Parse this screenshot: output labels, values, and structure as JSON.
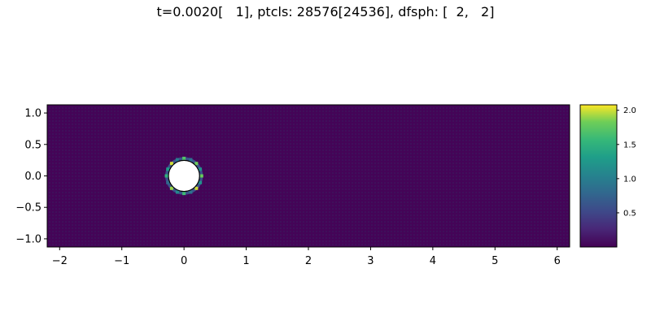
{
  "title": "t=0.0020[   1], ptcls: 28576[24536], dfsph: [  2,   2]",
  "chart_data": {
    "type": "heatmap",
    "title": "t=0.0020[   1], ptcls: 28576[24536], dfsph: [  2,   2]",
    "xlabel": "",
    "ylabel": "",
    "xlim": [
      -2.2,
      6.2
    ],
    "ylim": [
      -1.13,
      1.13
    ],
    "x_ticks": [
      -2,
      -1,
      0,
      1,
      2,
      3,
      4,
      5,
      6
    ],
    "x_tick_labels": [
      "−2",
      "−1",
      "0",
      "1",
      "2",
      "3",
      "4",
      "5",
      "6"
    ],
    "y_ticks": [
      1.0,
      0.5,
      0.0,
      -0.5,
      -1.0
    ],
    "y_tick_labels": [
      "1.0",
      "0.5",
      "0.0",
      "−0.5",
      "−1.0"
    ],
    "obstacle": {
      "shape": "circle",
      "center": [
        0,
        0
      ],
      "radius": 0.25
    },
    "background_value": 0.02,
    "ring_values": [
      1.8,
      1.2,
      2.0,
      0.9,
      1.6,
      1.1,
      1.9,
      0.8,
      1.5,
      1.3,
      2.0,
      1.0,
      1.7,
      0.9,
      1.8,
      1.2
    ],
    "colormap": "viridis",
    "colorbar": {
      "vmin": 0.0,
      "vmax": 2.08,
      "ticks": [
        2.0,
        1.5,
        1.0,
        0.5
      ],
      "tick_labels": [
        "2.0",
        "1.5",
        "1.0",
        "0.5"
      ]
    },
    "grid": false
  }
}
